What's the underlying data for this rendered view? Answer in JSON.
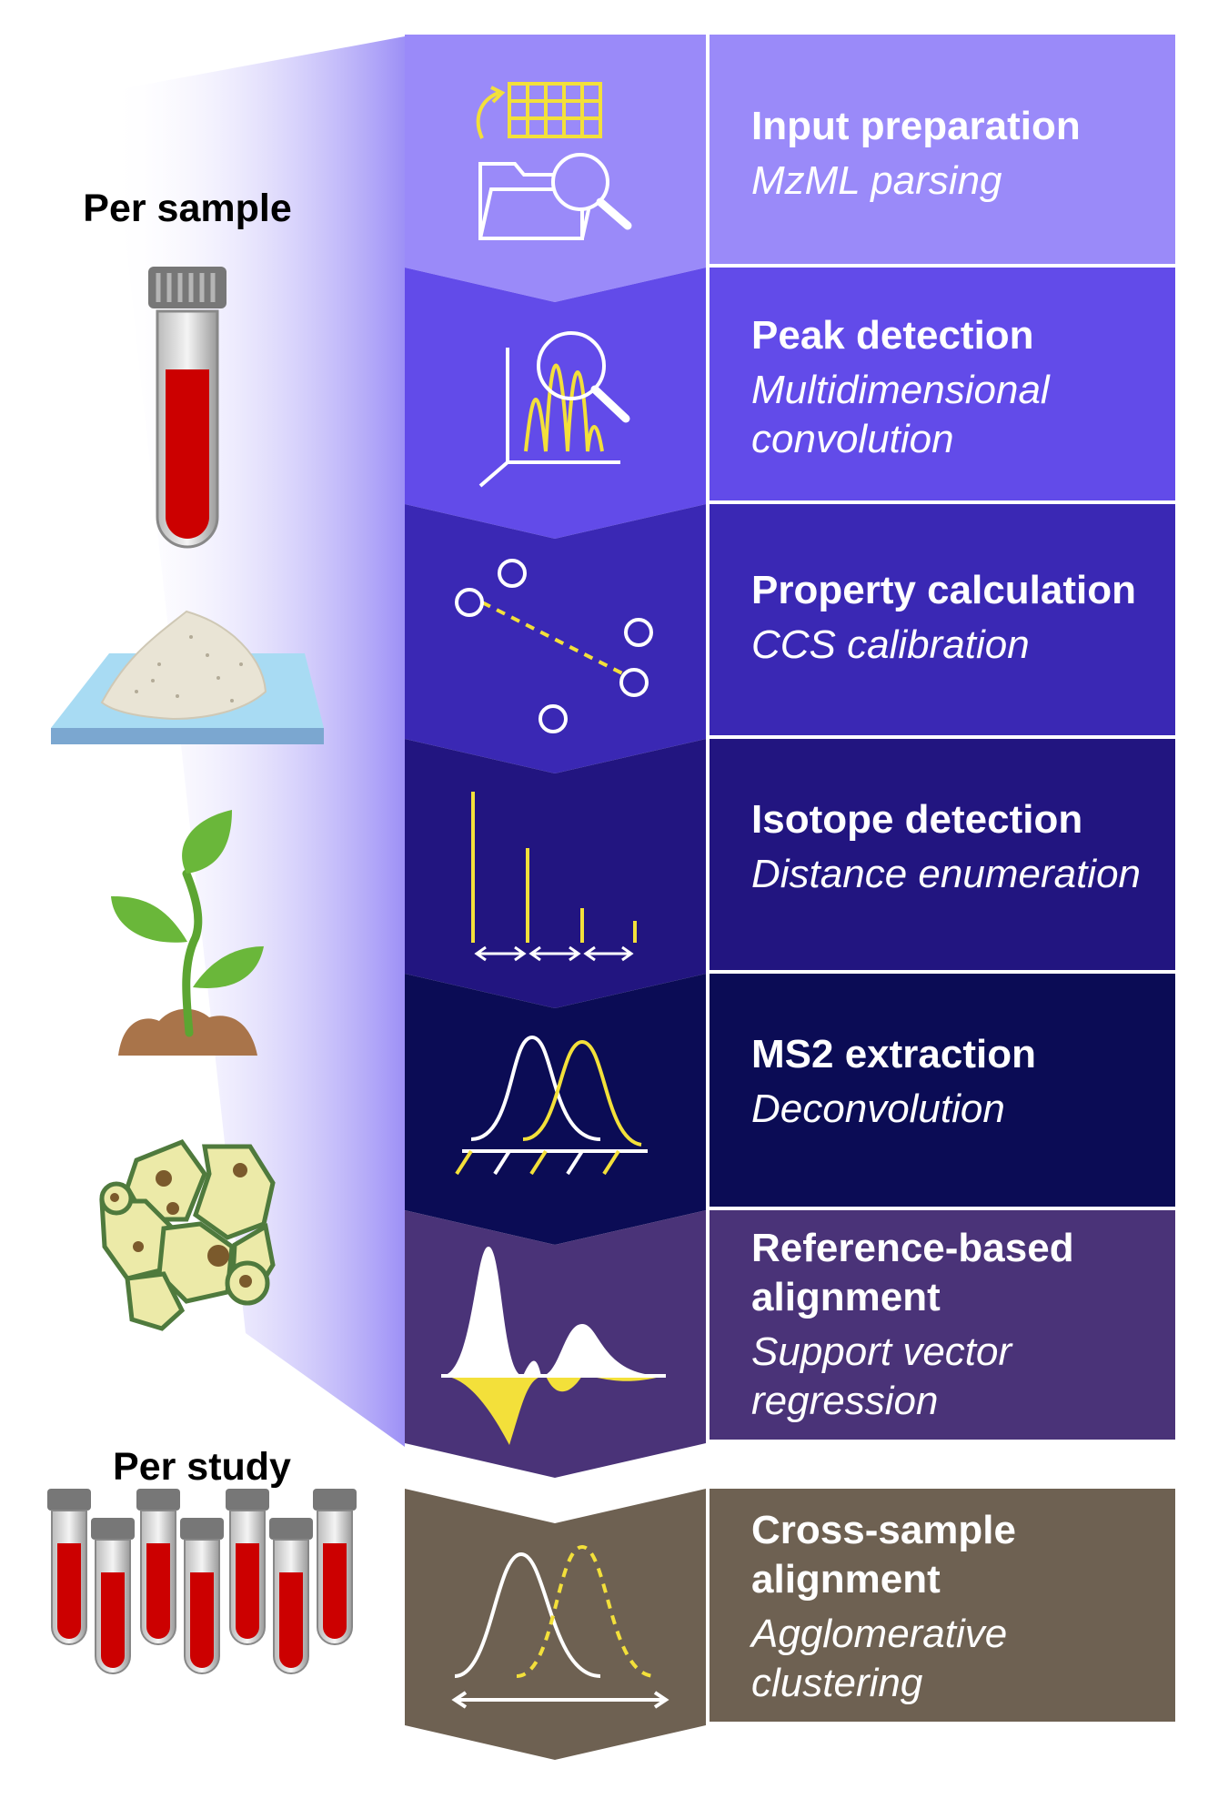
{
  "side_labels": {
    "per_sample": "Per sample",
    "per_study": "Per study"
  },
  "stages": [
    {
      "title": "Input preparation",
      "subtitle": "MzML parsing",
      "color": "#9a8af9",
      "icon": "folder-table-search-icon"
    },
    {
      "title": "Peak detection",
      "subtitle": "Multidimensional\nconvolution",
      "color": "#624be9",
      "icon": "peak-chart-magnifier-icon"
    },
    {
      "title": "Property calculation",
      "subtitle": "CCS calibration",
      "color": "#3a28b4",
      "icon": "calibration-points-icon"
    },
    {
      "title": "Isotope detection",
      "subtitle": "Distance enumeration",
      "color": "#221580",
      "icon": "isotope-spectrum-icon"
    },
    {
      "title": "MS2 extraction",
      "subtitle": "Deconvolution",
      "color": "#0b0c55",
      "icon": "overlapping-peaks-icon"
    },
    {
      "title": "Reference-based\nalignment",
      "subtitle": "Support vector\nregression",
      "color": "#4a3378",
      "icon": "mirror-peaks-icon"
    },
    {
      "title": "Cross-sample\nalignment",
      "subtitle": "Agglomerative\nclustering",
      "color": "#6e6152",
      "icon": "shifted-peaks-icon"
    }
  ],
  "sample_icons": [
    "blood-tube-icon",
    "powder-pile-icon",
    "seedling-icon",
    "cell-cluster-icon"
  ],
  "study_icon": "tube-rack-icon",
  "colors": {
    "accent": "#f3e03a",
    "blood": "#cc0000",
    "divider": "#ffffff"
  }
}
